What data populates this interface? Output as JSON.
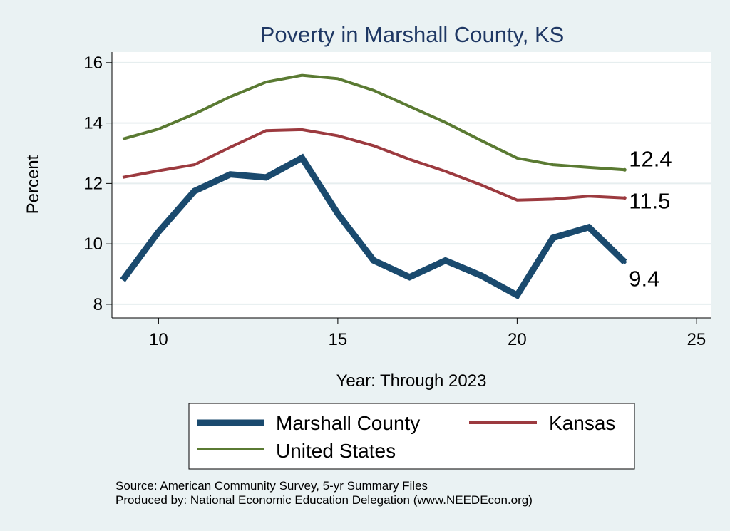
{
  "chart_data": {
    "type": "line",
    "title": "Poverty in Marshall County, KS",
    "xlabel": "Year: Through 2023",
    "ylabel": "Percent",
    "xlim": [
      8.7,
      25.4
    ],
    "ylim": [
      7.55,
      16.35
    ],
    "xticks": [
      10,
      15,
      20,
      25
    ],
    "yticks": [
      8,
      10,
      12,
      14,
      16
    ],
    "grid": true,
    "x": [
      9,
      10,
      11,
      12,
      13,
      14,
      15,
      16,
      17,
      18,
      19,
      20,
      21,
      22,
      23
    ],
    "series": [
      {
        "name": "Marshall County",
        "color": "#1a4a6e",
        "values": [
          8.8,
          10.4,
          11.75,
          12.3,
          12.2,
          12.85,
          11.0,
          9.45,
          8.9,
          9.45,
          8.95,
          8.3,
          10.2,
          10.55,
          9.4
        ],
        "end_label": "9.4"
      },
      {
        "name": "Kansas",
        "color": "#9c3a3f",
        "values": [
          12.2,
          12.42,
          12.62,
          13.2,
          13.75,
          13.78,
          13.58,
          13.25,
          12.8,
          12.4,
          11.95,
          11.45,
          11.48,
          11.58,
          11.52
        ],
        "end_label": "11.5"
      },
      {
        "name": "United States",
        "color": "#5a7a32",
        "values": [
          13.47,
          13.8,
          14.3,
          14.87,
          15.36,
          15.58,
          15.47,
          15.08,
          14.55,
          14.02,
          13.42,
          12.84,
          12.62,
          12.53,
          12.45
        ],
        "end_label": "12.4"
      }
    ],
    "legend_placement": "bottom"
  },
  "source_lines": [
    "Source: American Community Survey, 5-yr Summary Files",
    "Produced by: National Economic Education Delegation (www.NEEDEcon.org)"
  ]
}
